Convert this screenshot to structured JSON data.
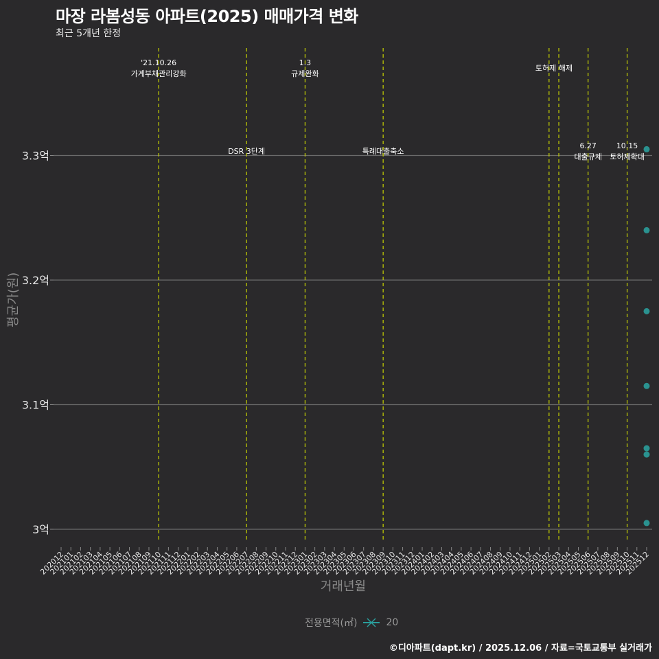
{
  "header": {
    "title": "마장 라봄성동 아파트(2025) 매매가격 변화",
    "subtitle": "최근 5개년 한정"
  },
  "legend": {
    "title": "전용면적(㎡)",
    "items": [
      {
        "label": "20",
        "color": "#2a9d9b"
      }
    ]
  },
  "caption": "©디아파트(dapt.kr) / 2025.12.06 / 자료=국토교통부 실거래가",
  "colors": {
    "background": "#2a292b",
    "gridline": "#6b6b6b",
    "event_line": "#c8d400",
    "point": "#2a9d9b"
  },
  "chart_data": {
    "type": "scatter",
    "title": "마장 라봄성동 아파트(2025) 매매가격 변화",
    "subtitle": "최근 5개년 한정",
    "xlabel": "거래년월",
    "ylabel": "평균가(원)",
    "ylim": [
      2.99,
      3.385
    ],
    "grid": true,
    "legend_position": "bottom",
    "y_ticks": [
      {
        "value": 3.0,
        "label": "3억"
      },
      {
        "value": 3.1,
        "label": "3.1억"
      },
      {
        "value": 3.2,
        "label": "3.2억"
      },
      {
        "value": 3.3,
        "label": "3.3억"
      }
    ],
    "x_categories": [
      "202012",
      "202101",
      "202102",
      "202103",
      "202104",
      "202105",
      "202106",
      "202107",
      "202108",
      "202109",
      "202110",
      "202111",
      "202112",
      "202201",
      "202202",
      "202203",
      "202204",
      "202205",
      "202206",
      "202207",
      "202208",
      "202209",
      "202210",
      "202211",
      "202212",
      "202301",
      "202302",
      "202303",
      "202304",
      "202305",
      "202306",
      "202307",
      "202308",
      "202309",
      "202310",
      "202311",
      "202312",
      "202401",
      "202402",
      "202403",
      "202404",
      "202405",
      "202406",
      "202407",
      "202408",
      "202409",
      "202410",
      "202411",
      "202412",
      "202501",
      "202502",
      "202503",
      "202504",
      "202505",
      "202506",
      "202507",
      "202508",
      "202509",
      "202510",
      "202511",
      "202512"
    ],
    "series": [
      {
        "name": "20",
        "points": [
          {
            "x": "202512",
            "y": 3.305
          },
          {
            "x": "202512",
            "y": 3.24
          },
          {
            "x": "202512",
            "y": 3.175
          },
          {
            "x": "202512",
            "y": 3.115
          },
          {
            "x": "202512",
            "y": 3.065
          },
          {
            "x": "202512",
            "y": 3.06
          },
          {
            "x": "202512",
            "y": 3.005
          }
        ]
      }
    ],
    "annotations": [
      {
        "x": "202110",
        "line1": "'21.10.26",
        "line2": "가계부채관리강화",
        "level": "top"
      },
      {
        "x": "202207",
        "line1": "",
        "line2": "DSR 3단계",
        "level": "mid"
      },
      {
        "x": "202301",
        "line1": "1.3",
        "line2": "규제완화",
        "level": "top"
      },
      {
        "x": "202309",
        "line1": "",
        "line2": "특례대출축소",
        "level": "mid"
      },
      {
        "x": "202502",
        "line1": "",
        "line2": "토허제 해제",
        "level": "top-single",
        "span_to": "202503"
      },
      {
        "x": "202503",
        "line1": "",
        "line2": "",
        "level": "none"
      },
      {
        "x": "202506",
        "line1": "6.27",
        "line2": "대출규제",
        "level": "mid"
      },
      {
        "x": "202510",
        "line1": "10.15",
        "line2": "토허제확대",
        "level": "mid"
      }
    ]
  }
}
